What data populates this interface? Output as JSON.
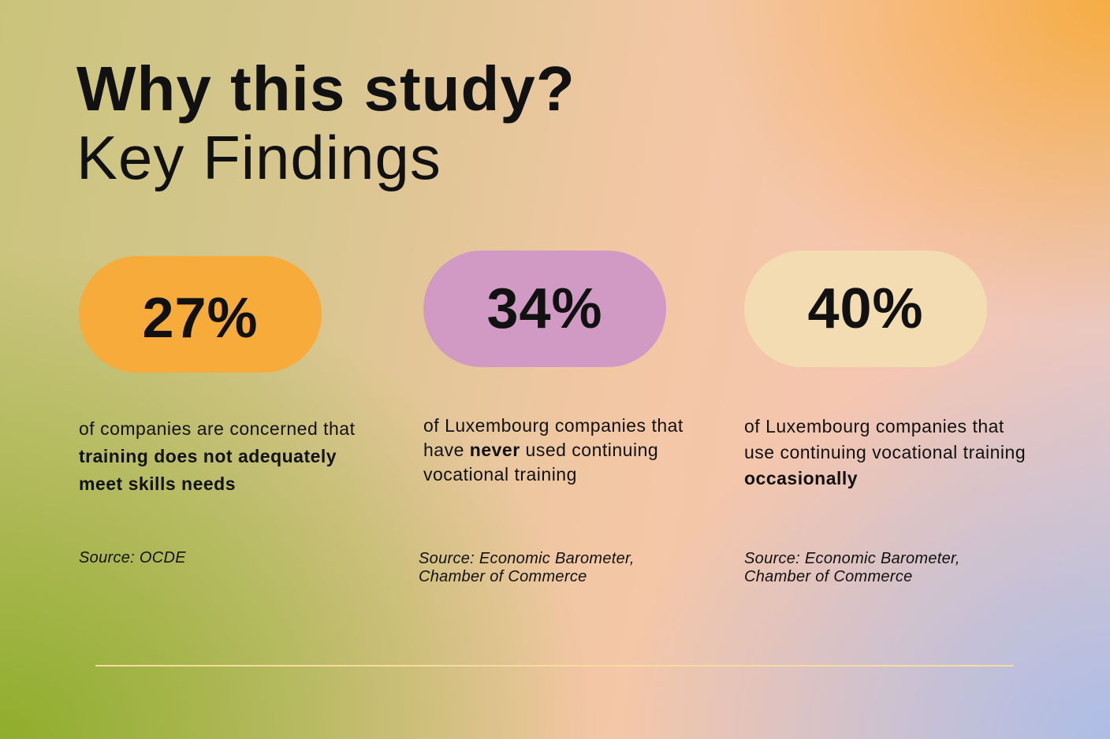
{
  "heading": {
    "line1": "Why this study?",
    "line2": "Key Findings"
  },
  "colors": {
    "pill_1": "#f7ab3b",
    "pill_2": "#d09ac4",
    "pill_3": "#f3dbb2",
    "divider": "#f7dca2"
  },
  "findings": [
    {
      "value": "27%",
      "desc_parts": [
        "of companies are concerned that ",
        "training does not adequately meet skills needs",
        ""
      ],
      "source": "Source: OCDE"
    },
    {
      "value": "34%",
      "desc_parts": [
        "of Luxembourg companies that have ",
        "never",
        " used continuing vocational training"
      ],
      "source_line1": "Source: Economic Barometer,",
      "source_line2": "Chamber of Commerce"
    },
    {
      "value": "40%",
      "desc_parts": [
        "of Luxembourg companies that use continuing vocational training ",
        "occasionally",
        ""
      ],
      "source_line1": "Source: Economic Barometer,",
      "source_line2": "Chamber of Commerce"
    }
  ]
}
